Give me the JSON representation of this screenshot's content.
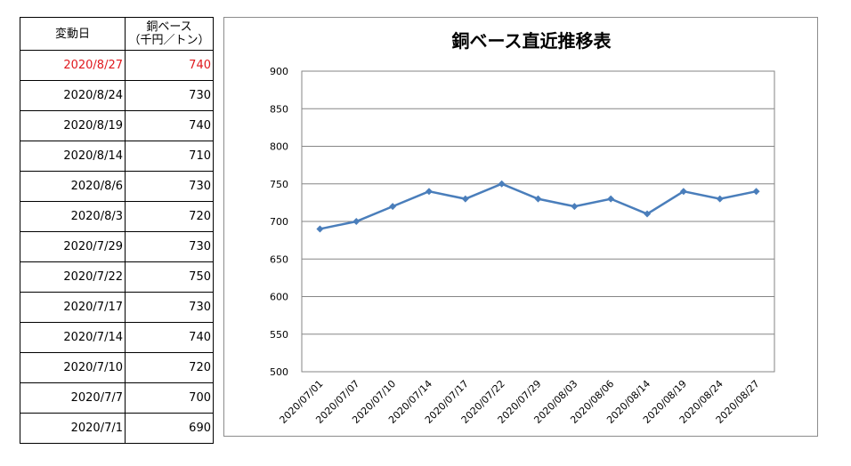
{
  "table": {
    "header_date": "変動日",
    "header_price_line1": "銅ベース",
    "header_price_line2": "（千円／トン）",
    "rows": [
      {
        "date": "2020/8/27",
        "price": "740",
        "latest": true
      },
      {
        "date": "2020/8/24",
        "price": "730"
      },
      {
        "date": "2020/8/19",
        "price": "740"
      },
      {
        "date": "2020/8/14",
        "price": "710"
      },
      {
        "date": "2020/8/6",
        "price": "730"
      },
      {
        "date": "2020/8/3",
        "price": "720"
      },
      {
        "date": "2020/7/29",
        "price": "730"
      },
      {
        "date": "2020/7/22",
        "price": "750"
      },
      {
        "date": "2020/7/17",
        "price": "730"
      },
      {
        "date": "2020/7/14",
        "price": "740"
      },
      {
        "date": "2020/7/10",
        "price": "720"
      },
      {
        "date": "2020/7/7",
        "price": "700"
      },
      {
        "date": "2020/7/1",
        "price": "690"
      }
    ],
    "latest_color": "#e0191e"
  },
  "chart_data": {
    "type": "line",
    "title": "銅ベース直近推移表",
    "categories": [
      "2020/07/01",
      "2020/07/07",
      "2020/07/10",
      "2020/07/14",
      "2020/07/17",
      "2020/07/22",
      "2020/07/29",
      "2020/08/03",
      "2020/08/06",
      "2020/08/14",
      "2020/08/19",
      "2020/08/24",
      "2020/08/27"
    ],
    "series": [
      {
        "values": [
          690,
          700,
          720,
          740,
          730,
          750,
          730,
          720,
          730,
          710,
          740,
          730,
          740
        ],
        "color": "#4a7ebb"
      }
    ],
    "ylim": [
      500,
      900
    ],
    "yticks": [
      "500",
      "550",
      "600",
      "650",
      "700",
      "750",
      "800",
      "850",
      "900"
    ],
    "grid": true,
    "legend": "none",
    "xlabel": "",
    "ylabel": ""
  }
}
